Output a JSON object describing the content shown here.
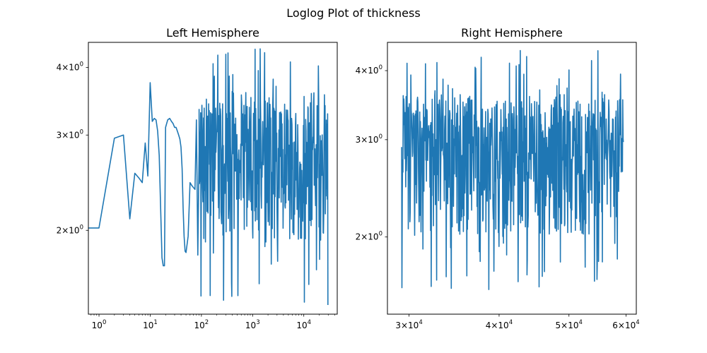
{
  "figure": {
    "suptitle": "Loglog Plot of thickness"
  },
  "chart_data": [
    {
      "type": "line",
      "title": "Left Hemisphere",
      "xlabel": "",
      "ylabel": "",
      "xscale": "log",
      "yscale": "log",
      "xlim": [
        0.62,
        45000
      ],
      "ylim": [
        1.4,
        4.45
      ],
      "grid": false,
      "legend": "none",
      "color": "#1f77b4",
      "xticks": [
        {
          "value": 1,
          "base": "10",
          "exp": "0"
        },
        {
          "value": 10,
          "base": "10",
          "exp": "1"
        },
        {
          "value": 100,
          "base": "10",
          "exp": "2"
        },
        {
          "value": 1000,
          "base": "10",
          "exp": "3"
        },
        {
          "value": 10000,
          "base": "10",
          "exp": "4"
        }
      ],
      "yticks": [
        {
          "value": 2,
          "mant": "2",
          "base": "10",
          "exp": "0"
        },
        {
          "value": 3,
          "mant": "3",
          "base": "10",
          "exp": "0"
        },
        {
          "value": 4,
          "mant": "4",
          "base": "10",
          "exp": "0"
        }
      ],
      "series": [
        {
          "x": [
            0.6,
            1,
            2,
            3,
            4,
            5,
            6,
            7,
            8,
            9,
            10,
            11,
            12,
            13,
            14,
            15,
            16,
            17,
            18,
            19,
            20,
            22,
            24,
            26,
            28,
            30,
            32,
            34,
            36,
            38,
            40,
            42,
            44,
            46,
            48,
            50,
            55,
            60,
            65,
            70,
            75,
            80,
            85,
            90
          ],
          "y": [
            2.02,
            2.02,
            2.96,
            3.0,
            2.1,
            2.55,
            2.5,
            2.45,
            2.9,
            2.52,
            3.75,
            3.18,
            3.22,
            3.2,
            3.05,
            2.75,
            2.2,
            1.78,
            1.72,
            1.72,
            3.1,
            3.2,
            3.22,
            3.18,
            3.15,
            3.1,
            3.1,
            3.05,
            3.0,
            2.95,
            2.85,
            2.6,
            2.2,
            1.95,
            1.83,
            1.82,
            1.95,
            2.45,
            2.42,
            2.4,
            2.38,
            3.2,
            1.8,
            2.8
          ]
        }
      ],
      "dense_region": {
        "x_start": 90,
        "x_end": 30000,
        "y_min": 1.45,
        "y_max": 4.35
      }
    },
    {
      "type": "line",
      "title": "Right Hemisphere",
      "xlabel": "",
      "ylabel": "",
      "xscale": "log",
      "yscale": "log",
      "xlim": [
        28000,
        62000
      ],
      "ylim": [
        1.45,
        4.5
      ],
      "grid": false,
      "legend": "none",
      "color": "#1f77b4",
      "xticks": [
        {
          "value": 30000,
          "mant": "3",
          "base": "10",
          "exp": "4"
        },
        {
          "value": 40000,
          "mant": "4",
          "base": "10",
          "exp": "4"
        },
        {
          "value": 50000,
          "mant": "5",
          "base": "10",
          "exp": "4"
        },
        {
          "value": 60000,
          "mant": "6",
          "base": "10",
          "exp": "4"
        }
      ],
      "yticks": [
        {
          "value": 2,
          "mant": "2",
          "base": "10",
          "exp": "0"
        },
        {
          "value": 3,
          "mant": "3",
          "base": "10",
          "exp": "0"
        },
        {
          "value": 4,
          "mant": "4",
          "base": "10",
          "exp": "0"
        }
      ],
      "series": [],
      "dense_region": {
        "x_start": 29300,
        "x_end": 59500,
        "y_min": 1.55,
        "y_max": 4.35
      }
    }
  ]
}
